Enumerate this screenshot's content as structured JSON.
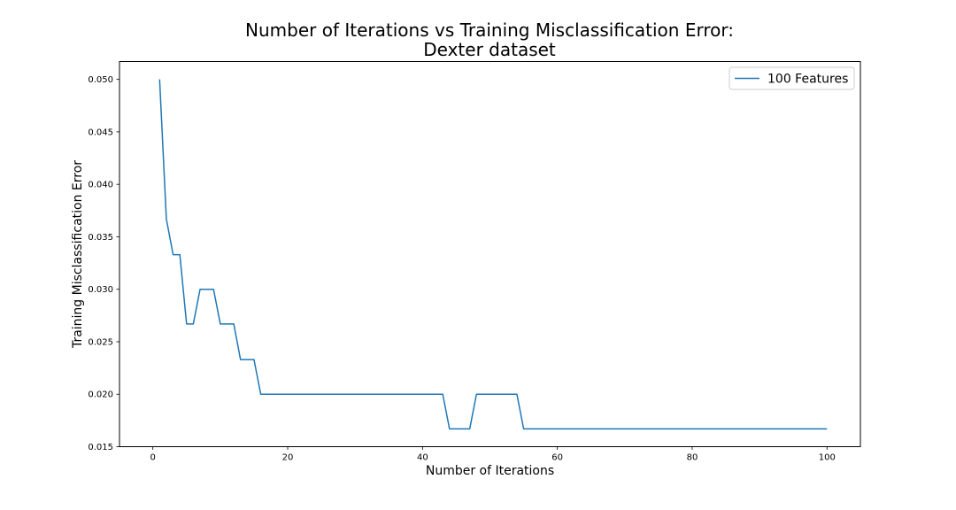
{
  "chart_data": {
    "type": "line",
    "title_lines": [
      "Number of Iterations vs Training Misclassification Error:",
      "Dexter dataset"
    ],
    "xlabel": "Number of Iterations",
    "ylabel": "Training Misclassification Error",
    "xlim": [
      -4.95,
      104.95
    ],
    "ylim": [
      0.015,
      0.0517
    ],
    "xticks": [
      0,
      20,
      40,
      60,
      80,
      100
    ],
    "xtick_labels": [
      "0",
      "20",
      "40",
      "60",
      "80",
      "100"
    ],
    "yticks": [
      0.015,
      0.02,
      0.025,
      0.03,
      0.035,
      0.04,
      0.045,
      0.05
    ],
    "ytick_labels": [
      "0.015",
      "0.020",
      "0.025",
      "0.030",
      "0.035",
      "0.040",
      "0.045",
      "0.050"
    ],
    "grid": false,
    "legend_position": "top-right",
    "series": [
      {
        "name": "100 Features",
        "color": "#1f77b4",
        "x": [
          1,
          2,
          3,
          4,
          5,
          6,
          7,
          8,
          9,
          10,
          11,
          12,
          13,
          14,
          15,
          16,
          17,
          18,
          19,
          20,
          21,
          22,
          23,
          24,
          25,
          26,
          27,
          28,
          29,
          30,
          31,
          32,
          33,
          34,
          35,
          36,
          37,
          38,
          39,
          40,
          41,
          42,
          43,
          44,
          45,
          46,
          47,
          48,
          49,
          50,
          51,
          52,
          53,
          54,
          55,
          56,
          57,
          58,
          59,
          60,
          61,
          62,
          63,
          64,
          65,
          66,
          67,
          68,
          69,
          70,
          71,
          72,
          73,
          74,
          75,
          76,
          77,
          78,
          79,
          80,
          81,
          82,
          83,
          84,
          85,
          86,
          87,
          88,
          89,
          90,
          91,
          92,
          93,
          94,
          95,
          96,
          97,
          98,
          99,
          100
        ],
        "y": [
          0.05,
          0.0367,
          0.0333,
          0.0333,
          0.0267,
          0.0267,
          0.03,
          0.03,
          0.03,
          0.0267,
          0.0267,
          0.0267,
          0.0233,
          0.0233,
          0.0233,
          0.02,
          0.02,
          0.02,
          0.02,
          0.02,
          0.02,
          0.02,
          0.02,
          0.02,
          0.02,
          0.02,
          0.02,
          0.02,
          0.02,
          0.02,
          0.02,
          0.02,
          0.02,
          0.02,
          0.02,
          0.02,
          0.02,
          0.02,
          0.02,
          0.02,
          0.02,
          0.02,
          0.02,
          0.0167,
          0.0167,
          0.0167,
          0.0167,
          0.02,
          0.02,
          0.02,
          0.02,
          0.02,
          0.02,
          0.02,
          0.0167,
          0.0167,
          0.0167,
          0.0167,
          0.0167,
          0.0167,
          0.0167,
          0.0167,
          0.0167,
          0.0167,
          0.0167,
          0.0167,
          0.0167,
          0.0167,
          0.0167,
          0.0167,
          0.0167,
          0.0167,
          0.0167,
          0.0167,
          0.0167,
          0.0167,
          0.0167,
          0.0167,
          0.0167,
          0.0167,
          0.0167,
          0.0167,
          0.0167,
          0.0167,
          0.0167,
          0.0167,
          0.0167,
          0.0167,
          0.0167,
          0.0167,
          0.0167,
          0.0167,
          0.0167,
          0.0167,
          0.0167,
          0.0167,
          0.0167,
          0.0167,
          0.0167,
          0.0167
        ]
      }
    ]
  }
}
